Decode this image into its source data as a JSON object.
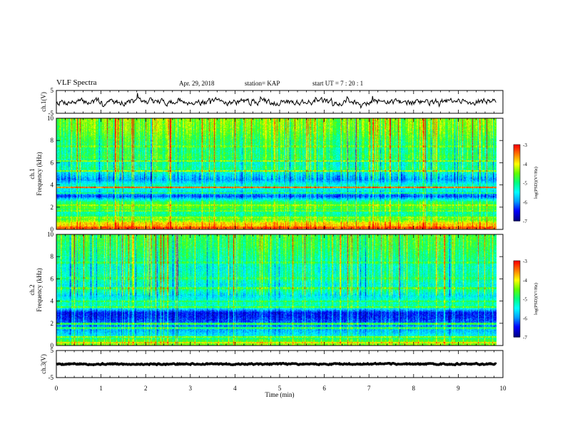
{
  "header": {
    "title": "VLF Spectra",
    "date": "Apr. 29, 2018",
    "station": "station= KAP",
    "start": "start  UT =   7 : 20 : 1"
  },
  "colors": {
    "frame": "#000000",
    "colormap": [
      "#00008b",
      "#0000ff",
      "#00a0ff",
      "#00ffff",
      "#00ff80",
      "#60ff00",
      "#ffff00",
      "#ff8000",
      "#ff0000",
      "#ffffff"
    ]
  },
  "chart_data": [
    {
      "type": "line",
      "panel": "ch1-waveform",
      "ylabel": "ch.1(V)",
      "ylim": [
        -5,
        5
      ],
      "yticks": [
        "5",
        "-5"
      ],
      "xlim": [
        0,
        10
      ],
      "xmax_data": 9.85,
      "mean": 0,
      "spread": 1.4,
      "grid": false
    },
    {
      "type": "heatmap",
      "panel": "ch1-spectrogram",
      "ylabel": "ch.1\nFrequency  (kHz)",
      "ylim": [
        0,
        10
      ],
      "yticks": [
        "0",
        "2",
        "4",
        "6",
        "8",
        "10"
      ],
      "xlim": [
        0,
        10
      ],
      "xmax_data": 9.85,
      "colorbar": {
        "label": "log(PSD)(V²/Hz)",
        "range": [
          -7,
          -3
        ],
        "ticks": [
          "-3",
          "-4",
          "-5",
          "-6",
          "-7"
        ]
      },
      "freq_profile_kHz": [
        [
          0.0,
          -3.6
        ],
        [
          0.5,
          -3.8
        ],
        [
          1.0,
          -4.7
        ],
        [
          1.5,
          -5.2
        ],
        [
          2.0,
          -4.6
        ],
        [
          2.5,
          -4.9
        ],
        [
          3.0,
          -6.3
        ],
        [
          3.5,
          -5.5
        ],
        [
          4.0,
          -5.3
        ],
        [
          4.5,
          -6.0
        ],
        [
          5.0,
          -5.6
        ],
        [
          5.5,
          -5.0
        ],
        [
          6.0,
          -5.3
        ],
        [
          6.5,
          -4.8
        ],
        [
          7.0,
          -5.0
        ],
        [
          8.0,
          -4.8
        ],
        [
          9.0,
          -4.5
        ],
        [
          10.0,
          -4.4
        ]
      ],
      "lines_kHz": [
        {
          "f": 0.2,
          "v": -3.3
        },
        {
          "f": 0.6,
          "v": -3.9
        },
        {
          "f": 1.1,
          "v": -4.4
        },
        {
          "f": 1.7,
          "v": -4.5
        },
        {
          "f": 2.2,
          "v": -4.3
        },
        {
          "f": 3.3,
          "v": -5.0
        },
        {
          "f": 3.8,
          "v": -3.4
        },
        {
          "f": 5.3,
          "v": -4.3
        },
        {
          "f": 6.2,
          "v": -4.4
        },
        {
          "f": 7.5,
          "v": -4.6
        }
      ]
    },
    {
      "type": "heatmap",
      "panel": "ch2-spectrogram",
      "ylabel": "ch.2\nFrequency  (kHz)",
      "ylim": [
        0,
        10
      ],
      "yticks": [
        "0",
        "2",
        "4",
        "6",
        "8",
        "10"
      ],
      "xlim": [
        0,
        10
      ],
      "xmax_data": 9.85,
      "colorbar": {
        "label": "log(PSD)(V²/Hz)",
        "range": [
          -7,
          -3
        ],
        "ticks": [
          "-3",
          "-4",
          "-5",
          "-6",
          "-7"
        ]
      },
      "freq_profile_kHz": [
        [
          0.0,
          -4.3
        ],
        [
          0.5,
          -4.7
        ],
        [
          1.0,
          -5.6
        ],
        [
          1.5,
          -5.9
        ],
        [
          2.0,
          -6.1
        ],
        [
          2.5,
          -6.4
        ],
        [
          3.0,
          -6.5
        ],
        [
          3.5,
          -5.2
        ],
        [
          4.0,
          -5.2
        ],
        [
          4.5,
          -5.6
        ],
        [
          5.0,
          -5.1
        ],
        [
          5.5,
          -5.4
        ],
        [
          6.0,
          -5.1
        ],
        [
          7.0,
          -5.3
        ],
        [
          8.0,
          -5.0
        ],
        [
          9.0,
          -4.8
        ],
        [
          10.0,
          -4.7
        ]
      ],
      "lines_kHz": [
        {
          "f": 0.3,
          "v": -3.9
        },
        {
          "f": 0.8,
          "v": -4.4
        },
        {
          "f": 1.6,
          "v": -4.9
        },
        {
          "f": 2.0,
          "v": -4.8
        },
        {
          "f": 3.5,
          "v": -4.6
        },
        {
          "f": 4.0,
          "v": -4.8
        },
        {
          "f": 5.2,
          "v": -4.7
        },
        {
          "f": 6.1,
          "v": -4.9
        },
        {
          "f": 7.5,
          "v": -4.8
        }
      ]
    },
    {
      "type": "line",
      "panel": "ch3-waveform",
      "ylabel": "ch.3(V)",
      "ylim": [
        -5,
        5
      ],
      "yticks": [
        "5",
        "-5"
      ],
      "xlim": [
        0,
        10
      ],
      "xmax_data": 9.85,
      "mean": 0,
      "spread": 0.25,
      "xlabel": "Time  (min)",
      "xticks": [
        "0",
        "1",
        "2",
        "3",
        "4",
        "5",
        "6",
        "7",
        "8",
        "9",
        "10"
      ],
      "grid": false
    }
  ]
}
